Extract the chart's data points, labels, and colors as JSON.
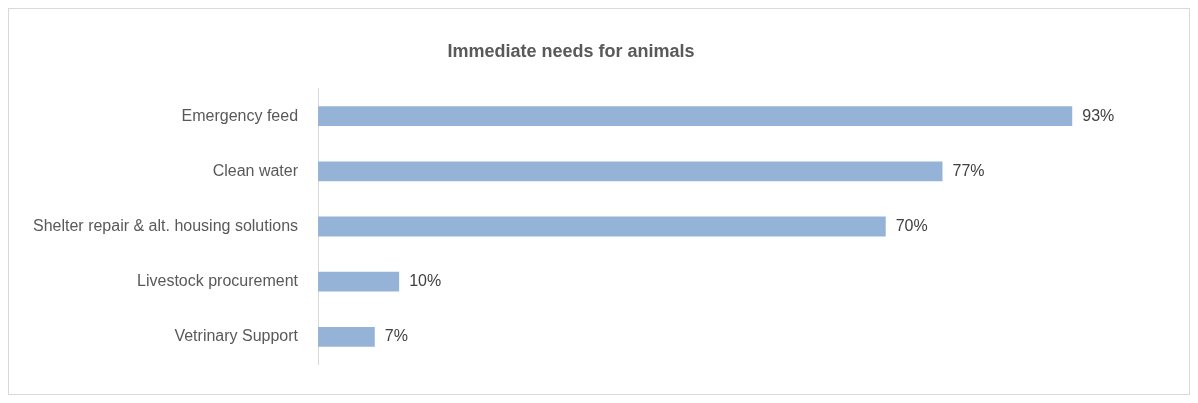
{
  "chart_data": {
    "type": "bar",
    "orientation": "horizontal",
    "title": "Immediate needs for animals",
    "categories": [
      "Emergency feed",
      "Clean water",
      "Shelter repair & alt. housing solutions",
      "Livestock procurement",
      "Vetrinary Support"
    ],
    "values": [
      93,
      77,
      70,
      10,
      7
    ],
    "value_labels": [
      "93%",
      "77%",
      "70%",
      "10%",
      "7%"
    ],
    "color": "#95b3d7",
    "grid": false,
    "legend": false
  }
}
